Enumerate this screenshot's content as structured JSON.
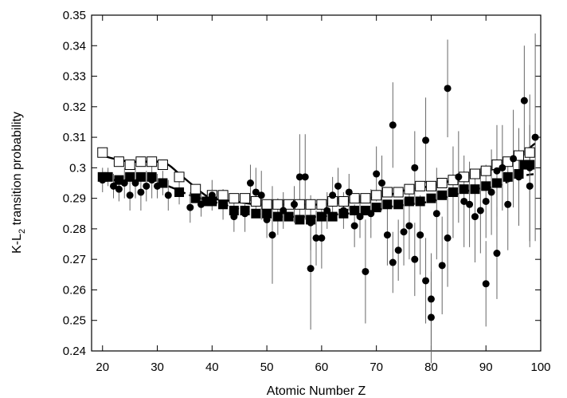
{
  "chart_data": {
    "type": "scatter",
    "title": "",
    "xlabel": "Atomic Number Z",
    "ylabel": {
      "pre": "K-L",
      "sub": "2",
      "post": " transition probability"
    },
    "xlim": [
      18,
      100
    ],
    "ylim": [
      0.24,
      0.35
    ],
    "xticks": [
      20,
      30,
      40,
      50,
      60,
      70,
      80,
      90,
      100
    ],
    "yticks": [
      0.24,
      0.25,
      0.26,
      0.27,
      0.28,
      0.29,
      0.3,
      0.31,
      0.32,
      0.33,
      0.34,
      0.35
    ],
    "xtick_labels": [
      "20",
      "30",
      "40",
      "50",
      "60",
      "70",
      "80",
      "90",
      "100"
    ],
    "ytick_labels": [
      "0.24",
      "0.25",
      "0.26",
      "0.27",
      "0.28",
      "0.29",
      "0.3",
      "0.31",
      "0.32",
      "0.33",
      "0.34",
      "0.35"
    ],
    "grid": false,
    "legend": "none",
    "series": [
      {
        "marker": "open-square",
        "color": "#000000",
        "x": [
          20,
          23,
          25,
          27,
          29,
          31,
          34,
          37,
          40,
          42,
          44,
          46,
          48,
          50,
          52,
          54,
          56,
          58,
          60,
          62,
          64,
          66,
          68,
          70,
          72,
          74,
          76,
          78,
          80,
          82,
          84,
          86,
          88,
          90,
          92,
          94,
          96,
          98
        ],
        "y": [
          0.305,
          0.302,
          0.301,
          0.302,
          0.302,
          0.301,
          0.297,
          0.293,
          0.291,
          0.291,
          0.29,
          0.29,
          0.289,
          0.288,
          0.288,
          0.288,
          0.288,
          0.288,
          0.288,
          0.289,
          0.289,
          0.29,
          0.29,
          0.291,
          0.292,
          0.292,
          0.293,
          0.294,
          0.294,
          0.295,
          0.296,
          0.297,
          0.298,
          0.299,
          0.301,
          0.302,
          0.304,
          0.305
        ]
      },
      {
        "marker": "filled-square",
        "color": "#000000",
        "x": [
          20,
          21,
          23,
          25,
          27,
          29,
          31,
          34,
          37,
          39,
          40,
          42,
          44,
          46,
          48,
          50,
          52,
          54,
          56,
          58,
          60,
          62,
          64,
          66,
          68,
          70,
          72,
          74,
          76,
          78,
          80,
          82,
          84,
          86,
          88,
          90,
          92,
          94,
          96,
          97,
          98
        ],
        "y": [
          0.297,
          0.297,
          0.296,
          0.297,
          0.297,
          0.297,
          0.295,
          0.292,
          0.29,
          0.289,
          0.289,
          0.288,
          0.286,
          0.286,
          0.285,
          0.285,
          0.284,
          0.284,
          0.283,
          0.283,
          0.284,
          0.284,
          0.285,
          0.286,
          0.286,
          0.287,
          0.288,
          0.288,
          0.289,
          0.289,
          0.29,
          0.291,
          0.292,
          0.293,
          0.293,
          0.294,
          0.295,
          0.297,
          0.298,
          0.301,
          0.301
        ]
      },
      {
        "marker": "filled-circle",
        "color": "#000000",
        "points": [
          {
            "x": 20,
            "y": 0.296,
            "err": 0.004
          },
          {
            "x": 21,
            "y": 0.297,
            "err": 0.003
          },
          {
            "x": 22,
            "y": 0.294,
            "err": 0.004
          },
          {
            "x": 23,
            "y": 0.293,
            "err": 0.004
          },
          {
            "x": 24,
            "y": 0.295,
            "err": 0.005
          },
          {
            "x": 25,
            "y": 0.291,
            "err": 0.005
          },
          {
            "x": 26,
            "y": 0.295,
            "err": 0.005
          },
          {
            "x": 27,
            "y": 0.292,
            "err": 0.006
          },
          {
            "x": 28,
            "y": 0.294,
            "err": 0.005
          },
          {
            "x": 29,
            "y": 0.296,
            "err": 0.006
          },
          {
            "x": 30,
            "y": 0.294,
            "err": 0.004
          },
          {
            "x": 31,
            "y": 0.295,
            "err": 0.004
          },
          {
            "x": 32,
            "y": 0.291,
            "err": 0.005
          },
          {
            "x": 34,
            "y": 0.292,
            "err": 0.004
          },
          {
            "x": 36,
            "y": 0.287,
            "err": 0.005
          },
          {
            "x": 38,
            "y": 0.288,
            "err": 0.004
          },
          {
            "x": 40,
            "y": 0.291,
            "err": 0.005
          },
          {
            "x": 42,
            "y": 0.288,
            "err": 0.005
          },
          {
            "x": 44,
            "y": 0.284,
            "err": 0.005
          },
          {
            "x": 46,
            "y": 0.285,
            "err": 0.006
          },
          {
            "x": 47,
            "y": 0.295,
            "err": 0.006
          },
          {
            "x": 48,
            "y": 0.292,
            "err": 0.008
          },
          {
            "x": 49,
            "y": 0.291,
            "err": 0.008
          },
          {
            "x": 50,
            "y": 0.283,
            "err": 0.006
          },
          {
            "x": 51,
            "y": 0.278,
            "err": 0.016
          },
          {
            "x": 52,
            "y": 0.284,
            "err": 0.006
          },
          {
            "x": 53,
            "y": 0.286,
            "err": 0.006
          },
          {
            "x": 55,
            "y": 0.288,
            "err": 0.006
          },
          {
            "x": 56,
            "y": 0.297,
            "err": 0.014
          },
          {
            "x": 57,
            "y": 0.297,
            "err": 0.014
          },
          {
            "x": 58,
            "y": 0.267,
            "err": 0.02
          },
          {
            "x": 58,
            "y": 0.282,
            "err": 0.009
          },
          {
            "x": 59,
            "y": 0.277,
            "err": 0.009
          },
          {
            "x": 60,
            "y": 0.277,
            "err": 0.01
          },
          {
            "x": 61,
            "y": 0.286,
            "err": 0.006
          },
          {
            "x": 62,
            "y": 0.291,
            "err": 0.006
          },
          {
            "x": 63,
            "y": 0.294,
            "err": 0.006
          },
          {
            "x": 64,
            "y": 0.286,
            "err": 0.006
          },
          {
            "x": 65,
            "y": 0.292,
            "err": 0.006
          },
          {
            "x": 66,
            "y": 0.281,
            "err": 0.007
          },
          {
            "x": 67,
            "y": 0.284,
            "err": 0.007
          },
          {
            "x": 68,
            "y": 0.266,
            "err": 0.017
          },
          {
            "x": 69,
            "y": 0.285,
            "err": 0.008
          },
          {
            "x": 70,
            "y": 0.298,
            "err": 0.009
          },
          {
            "x": 71,
            "y": 0.295,
            "err": 0.009
          },
          {
            "x": 72,
            "y": 0.278,
            "err": 0.01
          },
          {
            "x": 73,
            "y": 0.314,
            "err": 0.014
          },
          {
            "x": 73,
            "y": 0.269,
            "err": 0.01
          },
          {
            "x": 74,
            "y": 0.273,
            "err": 0.01
          },
          {
            "x": 75,
            "y": 0.279,
            "err": 0.011
          },
          {
            "x": 76,
            "y": 0.281,
            "err": 0.011
          },
          {
            "x": 77,
            "y": 0.3,
            "err": 0.012
          },
          {
            "x": 77,
            "y": 0.27,
            "err": 0.012
          },
          {
            "x": 78,
            "y": 0.278,
            "err": 0.013
          },
          {
            "x": 79,
            "y": 0.309,
            "err": 0.014
          },
          {
            "x": 79,
            "y": 0.263,
            "err": 0.014
          },
          {
            "x": 80,
            "y": 0.257,
            "err": 0.015
          },
          {
            "x": 80,
            "y": 0.251,
            "err": 0.015
          },
          {
            "x": 81,
            "y": 0.285,
            "err": 0.015
          },
          {
            "x": 82,
            "y": 0.268,
            "err": 0.016
          },
          {
            "x": 83,
            "y": 0.326,
            "err": 0.016
          },
          {
            "x": 83,
            "y": 0.277,
            "err": 0.016
          },
          {
            "x": 84,
            "y": 0.292,
            "err": 0.015
          },
          {
            "x": 85,
            "y": 0.297,
            "err": 0.015
          },
          {
            "x": 86,
            "y": 0.289,
            "err": 0.015
          },
          {
            "x": 87,
            "y": 0.288,
            "err": 0.014
          },
          {
            "x": 88,
            "y": 0.284,
            "err": 0.015
          },
          {
            "x": 89,
            "y": 0.286,
            "err": 0.014
          },
          {
            "x": 90,
            "y": 0.262,
            "err": 0.014
          },
          {
            "x": 90,
            "y": 0.289,
            "err": 0.012
          },
          {
            "x": 91,
            "y": 0.292,
            "err": 0.014
          },
          {
            "x": 92,
            "y": 0.272,
            "err": 0.015
          },
          {
            "x": 92,
            "y": 0.299,
            "err": 0.015
          },
          {
            "x": 93,
            "y": 0.3,
            "err": 0.014
          },
          {
            "x": 94,
            "y": 0.288,
            "err": 0.015
          },
          {
            "x": 95,
            "y": 0.303,
            "err": 0.016
          },
          {
            "x": 96,
            "y": 0.297,
            "err": 0.016
          },
          {
            "x": 97,
            "y": 0.322,
            "err": 0.018
          },
          {
            "x": 98,
            "y": 0.294,
            "err": 0.02
          },
          {
            "x": 98,
            "y": 0.3,
            "err": 0.024
          },
          {
            "x": 99,
            "y": 0.31,
            "err": 0.034
          }
        ]
      },
      {
        "marker": "solid-curve",
        "color": "#000000",
        "x": [
          20,
          22,
          25,
          28,
          30,
          32,
          34,
          36,
          38,
          40,
          44,
          48,
          52,
          56,
          60,
          64,
          68,
          72,
          76,
          80,
          84,
          88,
          92,
          96,
          99
        ],
        "y": [
          0.304,
          0.303,
          0.302,
          0.302,
          0.302,
          0.301,
          0.298,
          0.295,
          0.292,
          0.29,
          0.289,
          0.288,
          0.288,
          0.288,
          0.288,
          0.289,
          0.29,
          0.291,
          0.293,
          0.294,
          0.296,
          0.298,
          0.3,
          0.304,
          0.308
        ]
      },
      {
        "marker": "dashed-curve",
        "color": "#000000",
        "x": [
          20,
          24,
          28,
          32,
          36,
          40,
          44,
          48,
          52,
          56,
          60,
          64,
          68,
          72,
          76,
          80,
          84,
          88,
          92,
          96,
          99
        ],
        "y": [
          0.296,
          0.296,
          0.296,
          0.294,
          0.291,
          0.289,
          0.287,
          0.285,
          0.284,
          0.284,
          0.284,
          0.285,
          0.285,
          0.287,
          0.288,
          0.289,
          0.291,
          0.293,
          0.294,
          0.297,
          0.298
        ]
      }
    ]
  }
}
